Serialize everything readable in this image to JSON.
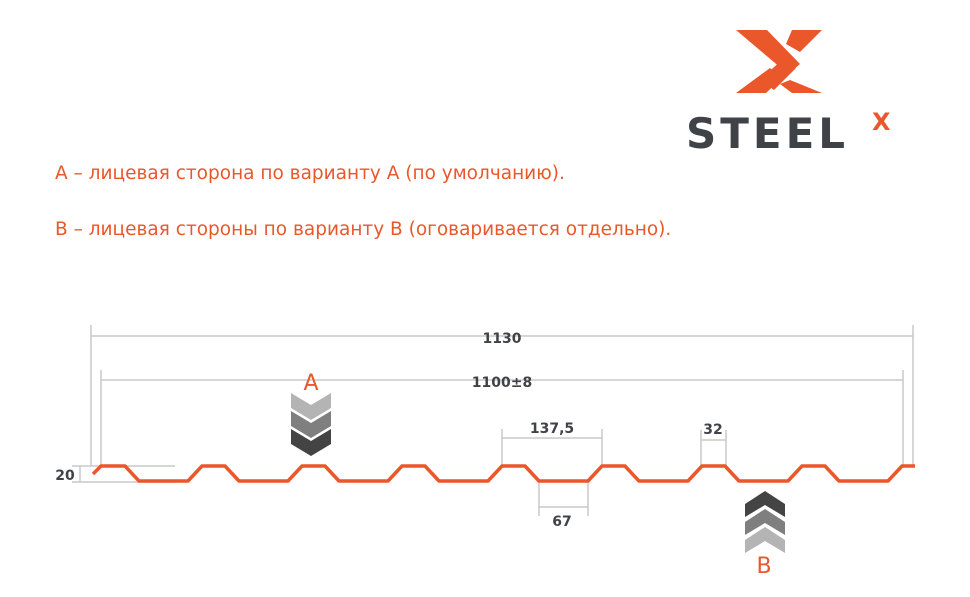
{
  "logo": {
    "text": "STEEL",
    "superscript": "X",
    "brand_color": "#e9572b",
    "text_color": "#3f4247"
  },
  "legend": {
    "line_a": "А – лицевая сторона по варианту А (по умолчанию).",
    "line_b": "В – лицевая стороны по варианту В (оговаривается отдельно)."
  },
  "drawing": {
    "dim_total": "1130",
    "dim_useful": "1100±8",
    "dim_pitch": "137,5",
    "dim_top": "32",
    "dim_bottom": "67",
    "dim_height": "20",
    "side_a": "A",
    "side_b": "B",
    "profile_color": "#e9572b",
    "dim_line_color": "#c8c8c8"
  }
}
